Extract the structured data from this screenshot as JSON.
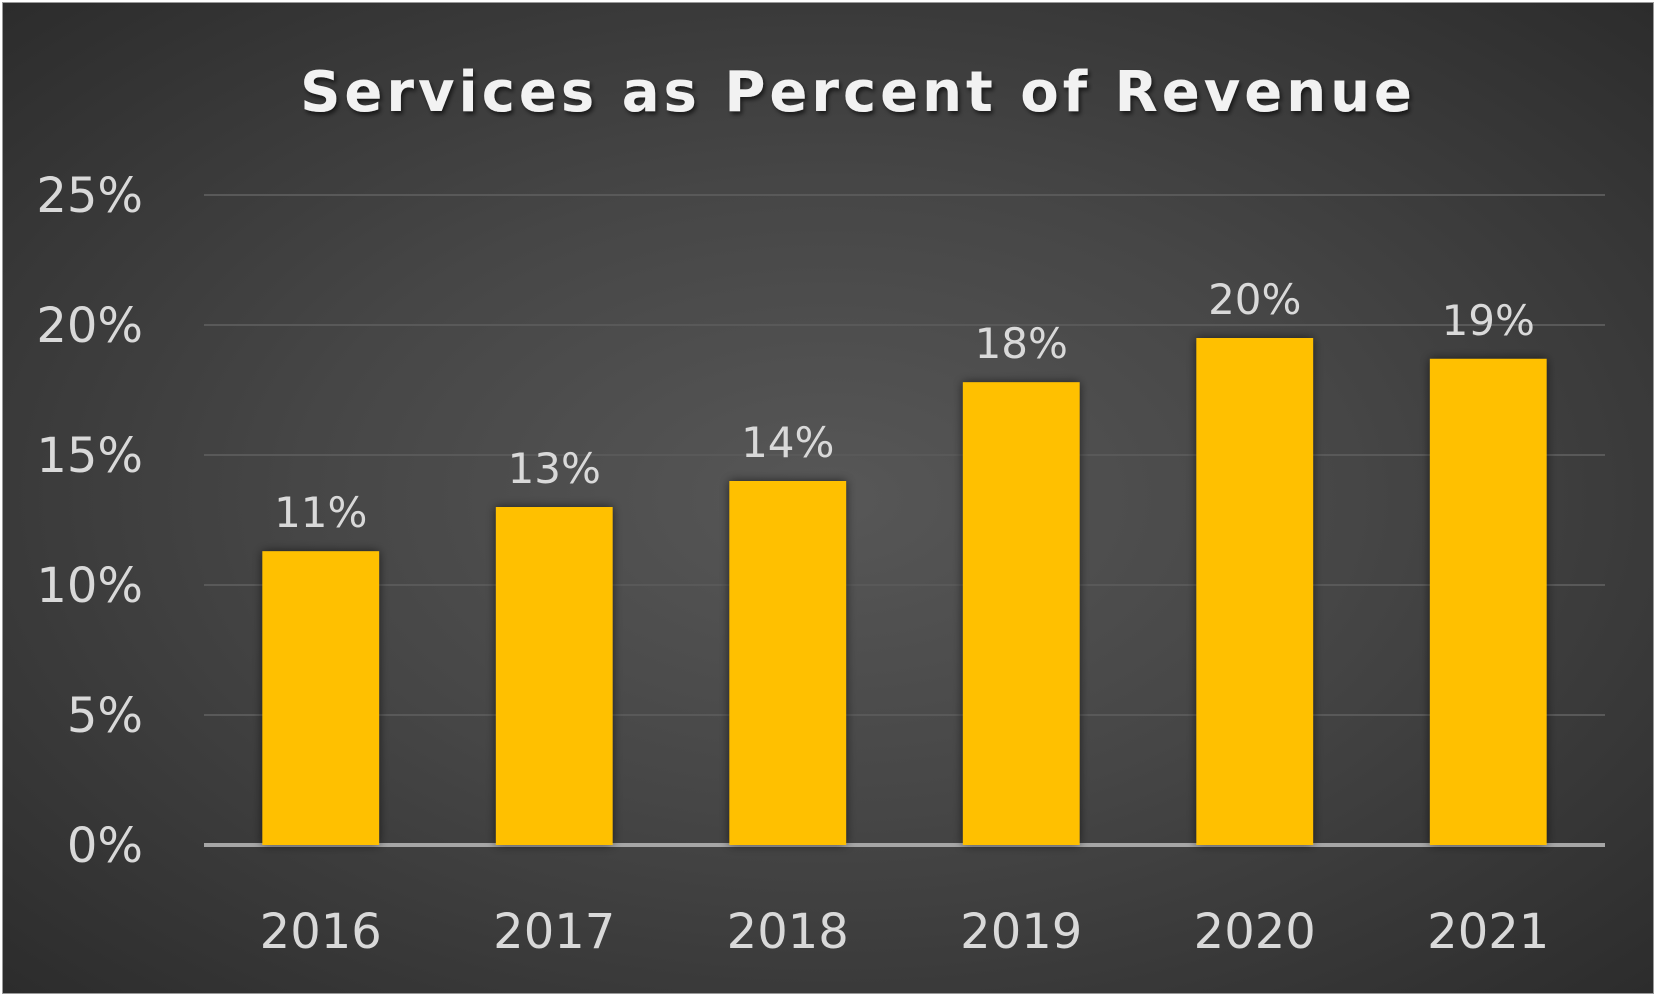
{
  "chart_data": {
    "type": "bar",
    "title": "Services as Percent of Revenue",
    "categories": [
      "2016",
      "2017",
      "2018",
      "2019",
      "2020",
      "2021"
    ],
    "values": [
      11.3,
      13.0,
      14.0,
      17.8,
      19.5,
      18.7
    ],
    "data_labels": [
      "11%",
      "13%",
      "14%",
      "18%",
      "20%",
      "19%"
    ],
    "y_ticks": [
      "0%",
      "5%",
      "10%",
      "15%",
      "20%",
      "25%"
    ],
    "ylim": [
      0,
      25
    ],
    "xlabel": "",
    "ylabel": "",
    "grid": true,
    "legend": "none",
    "colors": {
      "bar": "#FFC000",
      "background": "#404040",
      "text": "#D9D9D9",
      "gridline": "#595959",
      "axis": "#A6A6A6"
    }
  }
}
